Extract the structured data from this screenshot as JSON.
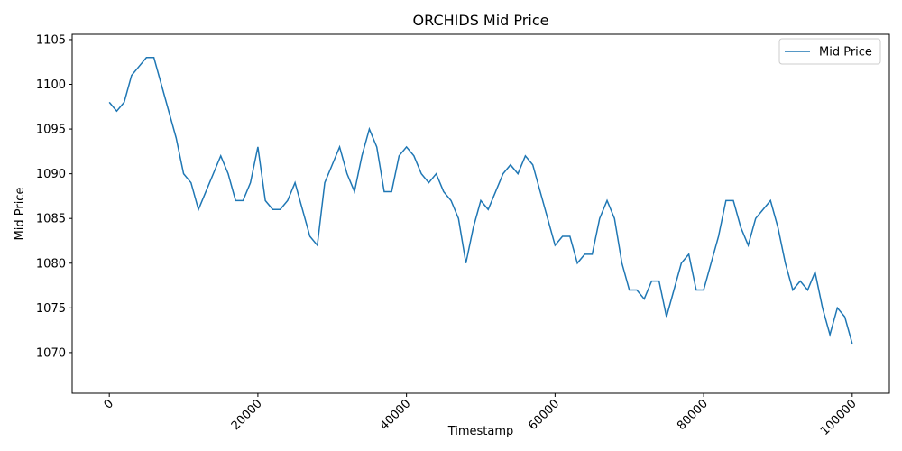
{
  "chart_data": {
    "type": "line",
    "title": "ORCHIDS Mid Price",
    "x_label": "Timestamp",
    "y_label": "Mid Price",
    "x": [
      0,
      1000,
      2000,
      3000,
      4000,
      5000,
      6000,
      7000,
      8000,
      9000,
      10000,
      11000,
      12000,
      13000,
      14000,
      15000,
      16000,
      17000,
      18000,
      19000,
      20000,
      21000,
      22000,
      23000,
      24000,
      25000,
      26000,
      27000,
      28000,
      29000,
      30000,
      31000,
      32000,
      33000,
      34000,
      35000,
      36000,
      37000,
      38000,
      39000,
      40000,
      41000,
      42000,
      43000,
      44000,
      45000,
      46000,
      47000,
      48000,
      49000,
      50000,
      51000,
      52000,
      53000,
      54000,
      55000,
      56000,
      57000,
      58000,
      59000,
      60000,
      61000,
      62000,
      63000,
      64000,
      65000,
      66000,
      67000,
      68000,
      69000,
      70000,
      71000,
      72000,
      73000,
      74000,
      75000,
      76000,
      77000,
      78000,
      79000,
      80000,
      81000,
      82000,
      83000,
      84000,
      85000,
      86000,
      87000,
      88000,
      89000,
      90000,
      91000,
      92000,
      93000,
      94000,
      95000,
      96000,
      97000,
      98000,
      99000,
      100000
    ],
    "series": [
      {
        "name": "Mid Price",
        "color": "#1f77b4",
        "values": [
          1098,
          1097,
          1098,
          1101,
          1102,
          1103,
          1103,
          1100,
          1097,
          1094,
          1090,
          1089,
          1086,
          1088,
          1090,
          1092,
          1090,
          1087,
          1087,
          1089,
          1093,
          1087,
          1086,
          1086,
          1087,
          1089,
          1086,
          1083,
          1082,
          1089,
          1091,
          1093,
          1090,
          1088,
          1092,
          1095,
          1093,
          1088,
          1088,
          1092,
          1093,
          1092,
          1090,
          1089,
          1090,
          1088,
          1087,
          1085,
          1080,
          1084,
          1087,
          1086,
          1088,
          1090,
          1091,
          1090,
          1092,
          1091,
          1088,
          1085,
          1082,
          1083,
          1083,
          1080,
          1081,
          1081,
          1085,
          1087,
          1085,
          1080,
          1077,
          1077,
          1076,
          1078,
          1078,
          1074,
          1077,
          1080,
          1081,
          1077,
          1077,
          1080,
          1083,
          1087,
          1087,
          1084,
          1082,
          1085,
          1086,
          1087,
          1084,
          1080,
          1077,
          1078,
          1077,
          1079,
          1075,
          1072,
          1075,
          1074,
          1071
        ]
      }
    ],
    "xlim": [
      -5000,
      105000
    ],
    "ylim": [
      1065.45,
      1105.6
    ],
    "xticks": [
      0,
      20000,
      40000,
      60000,
      80000,
      100000
    ],
    "yticks": [
      1070,
      1075,
      1080,
      1085,
      1090,
      1095,
      1100,
      1105
    ],
    "legend": "upper right"
  }
}
